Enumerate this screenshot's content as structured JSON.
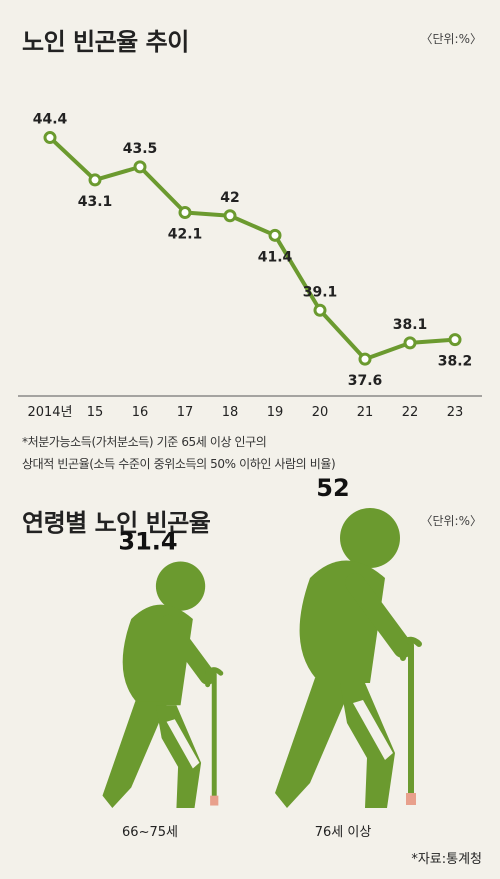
{
  "chart1": {
    "title": "노인 빈곤율 추이",
    "unit": "〈단위:%〉",
    "note_line1": "*처분가능소득(가처분소득) 기준 65세 이상 인구의",
    "note_line2": "상대적 빈곤율(소득 수준이 중위소득의 50% 이하인 사람의 비율)"
  },
  "chart2": {
    "title": "연령별 노인 빈곤율",
    "unit": "〈단위:%〉",
    "source": "*자료:통계청"
  },
  "colors": {
    "line": "#6b9a2f",
    "figure": "#6b9a2f",
    "background": "#f3f1ea",
    "axis": "#555555"
  },
  "chart_data": [
    {
      "type": "line",
      "title": "노인 빈곤율 추이",
      "categories": [
        "2014년",
        "15",
        "16",
        "17",
        "18",
        "19",
        "20",
        "21",
        "22",
        "23"
      ],
      "x": [
        2014,
        2015,
        2016,
        2017,
        2018,
        2019,
        2020,
        2021,
        2022,
        2023
      ],
      "values": [
        44.4,
        43.1,
        43.5,
        42.1,
        42,
        41.4,
        39.1,
        37.6,
        38.1,
        38.2
      ],
      "labels": [
        "44.4",
        "43.1",
        "43.5",
        "42.1",
        "42",
        "41.4",
        "39.1",
        "37.6",
        "38.1",
        "38.2"
      ],
      "label_side": [
        "above",
        "below",
        "above",
        "below",
        "above",
        "below",
        "above",
        "below",
        "above",
        "below"
      ],
      "ylim": [
        36.5,
        45
      ],
      "grid": false
    },
    {
      "type": "bar",
      "title": "연령별 노인 빈곤율",
      "categories": [
        "66~75세",
        "76세 이상"
      ],
      "values": [
        31.4,
        52
      ],
      "labels": [
        "31.4",
        "52"
      ]
    }
  ]
}
